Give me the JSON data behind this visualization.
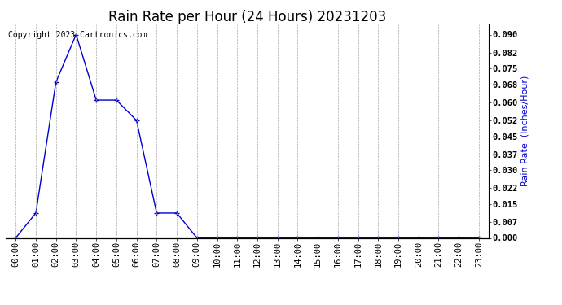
{
  "title": "Rain Rate per Hour (24 Hours) 20231203",
  "ylabel_right": "Rain Rate  (Inches/Hour)",
  "copyright_text": "Copyright 2023 Cartronics.com",
  "line_color": "#0000cc",
  "background_color": "#ffffff",
  "grid_color": "#aaaaaa",
  "hours": [
    0,
    1,
    2,
    3,
    4,
    5,
    6,
    7,
    8,
    9,
    10,
    11,
    12,
    13,
    14,
    15,
    16,
    17,
    18,
    19,
    20,
    21,
    22,
    23
  ],
  "values": [
    0.0,
    0.011,
    0.069,
    0.09,
    0.061,
    0.061,
    0.052,
    0.011,
    0.011,
    0.0,
    0.0,
    0.0,
    0.0,
    0.0,
    0.0,
    0.0,
    0.0,
    0.0,
    0.0,
    0.0,
    0.0,
    0.0,
    0.0,
    0.0
  ],
  "ylim": [
    0.0,
    0.0945
  ],
  "yticks": [
    0.0,
    0.007,
    0.015,
    0.022,
    0.03,
    0.037,
    0.045,
    0.052,
    0.06,
    0.068,
    0.075,
    0.082,
    0.09
  ],
  "title_fontsize": 12,
  "label_fontsize": 8,
  "tick_fontsize": 7.5,
  "copyright_fontsize": 7
}
